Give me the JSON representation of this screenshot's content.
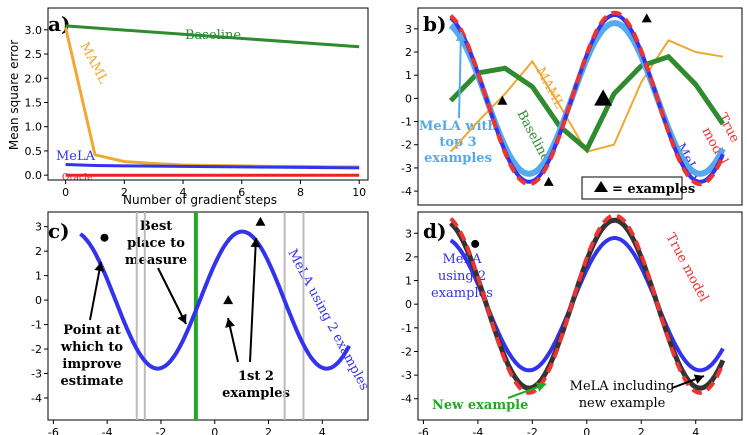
{
  "colors": {
    "baseline": "#2e8b2e",
    "maml": "#f0a830",
    "mela": "#3333ee",
    "mela_top3": "#55aaee",
    "oracle": "#ee2222",
    "true_model": "#ee3333",
    "new_mela": "#333333",
    "grid_line": "#bbbbbb",
    "best_line": "#22aa22"
  },
  "chart_data": [
    {
      "panel": "a)",
      "type": "line",
      "xlabel": "Number of gradient steps",
      "ylabel": "Mean square error",
      "xlim": [
        -0.6,
        10.3
      ],
      "ylim": [
        -0.1,
        3.45
      ],
      "xticks": [
        0,
        2,
        4,
        6,
        8,
        10
      ],
      "yticks": [
        0.0,
        0.5,
        1.0,
        1.5,
        2.0,
        2.5,
        3.0
      ],
      "ytick_labels": [
        "0.0",
        "0.5",
        "1.0",
        "1.5",
        "2.0",
        "2.5",
        "3.0"
      ],
      "series": [
        {
          "name": "Baseline",
          "label": "Baseline",
          "x": [
            0,
            10
          ],
          "y": [
            3.08,
            2.65
          ]
        },
        {
          "name": "MAML",
          "label": "MAML",
          "x": [
            0,
            1,
            2,
            3,
            4,
            5,
            6,
            7,
            8,
            9,
            10
          ],
          "y": [
            3.05,
            0.42,
            0.28,
            0.24,
            0.21,
            0.2,
            0.19,
            0.18,
            0.18,
            0.17,
            0.17
          ]
        },
        {
          "name": "MeLA",
          "label": "MeLA",
          "x": [
            0,
            1,
            2,
            4,
            6,
            8,
            10
          ],
          "y": [
            0.22,
            0.2,
            0.19,
            0.18,
            0.17,
            0.16,
            0.15
          ]
        },
        {
          "name": "Oracle",
          "label": "Oracle",
          "x": [
            0,
            10
          ],
          "y": [
            0.0,
            0.0
          ]
        }
      ]
    },
    {
      "panel": "b)",
      "type": "line",
      "xlim": [
        -6.2,
        5.7
      ],
      "ylim": [
        -4.6,
        3.9
      ],
      "yticks": [
        -4,
        -3,
        -2,
        -1,
        0,
        1,
        2,
        3
      ],
      "annotations": {
        "maml": "MAML",
        "baseline": "Baseline",
        "mela_top3": [
          "MeLA with",
          "top 3",
          "examples"
        ],
        "mela": "MeLA",
        "true_model": [
          "True",
          "model"
        ],
        "legend": "= examples"
      },
      "series": [
        {
          "name": "True model",
          "amplitude": 3.7,
          "phase": 0.55
        },
        {
          "name": "MeLA",
          "amplitude": 3.6,
          "phase": 0.55
        },
        {
          "name": "MeLA with top 3 examples",
          "amplitude": 3.25,
          "phase": 0.55
        },
        {
          "name": "MAML",
          "x": [
            -5,
            -4,
            -3,
            -2,
            -1,
            0,
            1,
            2,
            3,
            4,
            5
          ],
          "y": [
            -2.3,
            -1.0,
            0.2,
            1.6,
            -0.3,
            -2.3,
            -2.0,
            0.7,
            2.5,
            2.0,
            1.8
          ]
        },
        {
          "name": "Baseline",
          "x": [
            -5,
            -4,
            -3,
            -2,
            -1,
            0,
            1,
            2,
            3,
            4,
            5
          ],
          "y": [
            -0.1,
            1.1,
            1.3,
            0.5,
            -1.2,
            -2.2,
            0.2,
            1.4,
            1.8,
            0.6,
            -1.1
          ]
        }
      ],
      "examples": [
        {
          "x": -3.1,
          "y": -0.1
        },
        {
          "x": 0.6,
          "y": 0.0
        },
        {
          "x": 2.2,
          "y": 3.45
        },
        {
          "x": -1.4,
          "y": -3.6
        }
      ]
    },
    {
      "panel": "c)",
      "type": "line",
      "xlim": [
        -6.2,
        5.7
      ],
      "ylim": [
        -4.9,
        3.6
      ],
      "xticks": [
        -6,
        -4,
        -2,
        0,
        2,
        4
      ],
      "yticks": [
        -4,
        -3,
        -2,
        -1,
        0,
        1,
        2,
        3
      ],
      "annotations": {
        "best": [
          "Best",
          "place to",
          "measure"
        ],
        "point": [
          "Point at",
          "which to",
          "improve",
          "estimate"
        ],
        "first2": [
          "1st 2",
          "examples"
        ],
        "mela2": "MeLA using 2 examples"
      },
      "series": [
        {
          "name": "MeLA using 2 examples",
          "amplitude": 2.8,
          "phase": 0.55
        }
      ],
      "examples": [
        {
          "x": 0.5,
          "y": 0.0
        },
        {
          "x": 1.7,
          "y": 3.2
        }
      ],
      "marked_point": {
        "x": -4.1,
        "y": 2.55
      },
      "gray_lines": [
        -2.9,
        -2.6,
        2.6,
        3.3
      ],
      "best_x": -0.7
    },
    {
      "panel": "d)",
      "type": "line",
      "xlim": [
        -6.2,
        5.7
      ],
      "ylim": [
        -4.9,
        3.9
      ],
      "xticks": [
        -6,
        -4,
        -2,
        0,
        2,
        4
      ],
      "yticks": [
        -4,
        -3,
        -2,
        -1,
        0,
        1,
        2,
        3
      ],
      "annotations": {
        "true_model": "True model",
        "mela2": [
          "MeLA",
          "using 2",
          "examples"
        ],
        "new_example": "New example",
        "mela_new": [
          "MeLA including",
          "new example"
        ]
      },
      "series": [
        {
          "name": "True model",
          "amplitude": 3.75,
          "phase": 0.55
        },
        {
          "name": "MeLA including new example",
          "amplitude": 3.55,
          "phase": 0.55
        },
        {
          "name": "MeLA using 2 examples",
          "amplitude": 2.8,
          "phase": 0.55
        }
      ],
      "marked_point": {
        "x": -4.1,
        "y": 2.55
      }
    }
  ]
}
